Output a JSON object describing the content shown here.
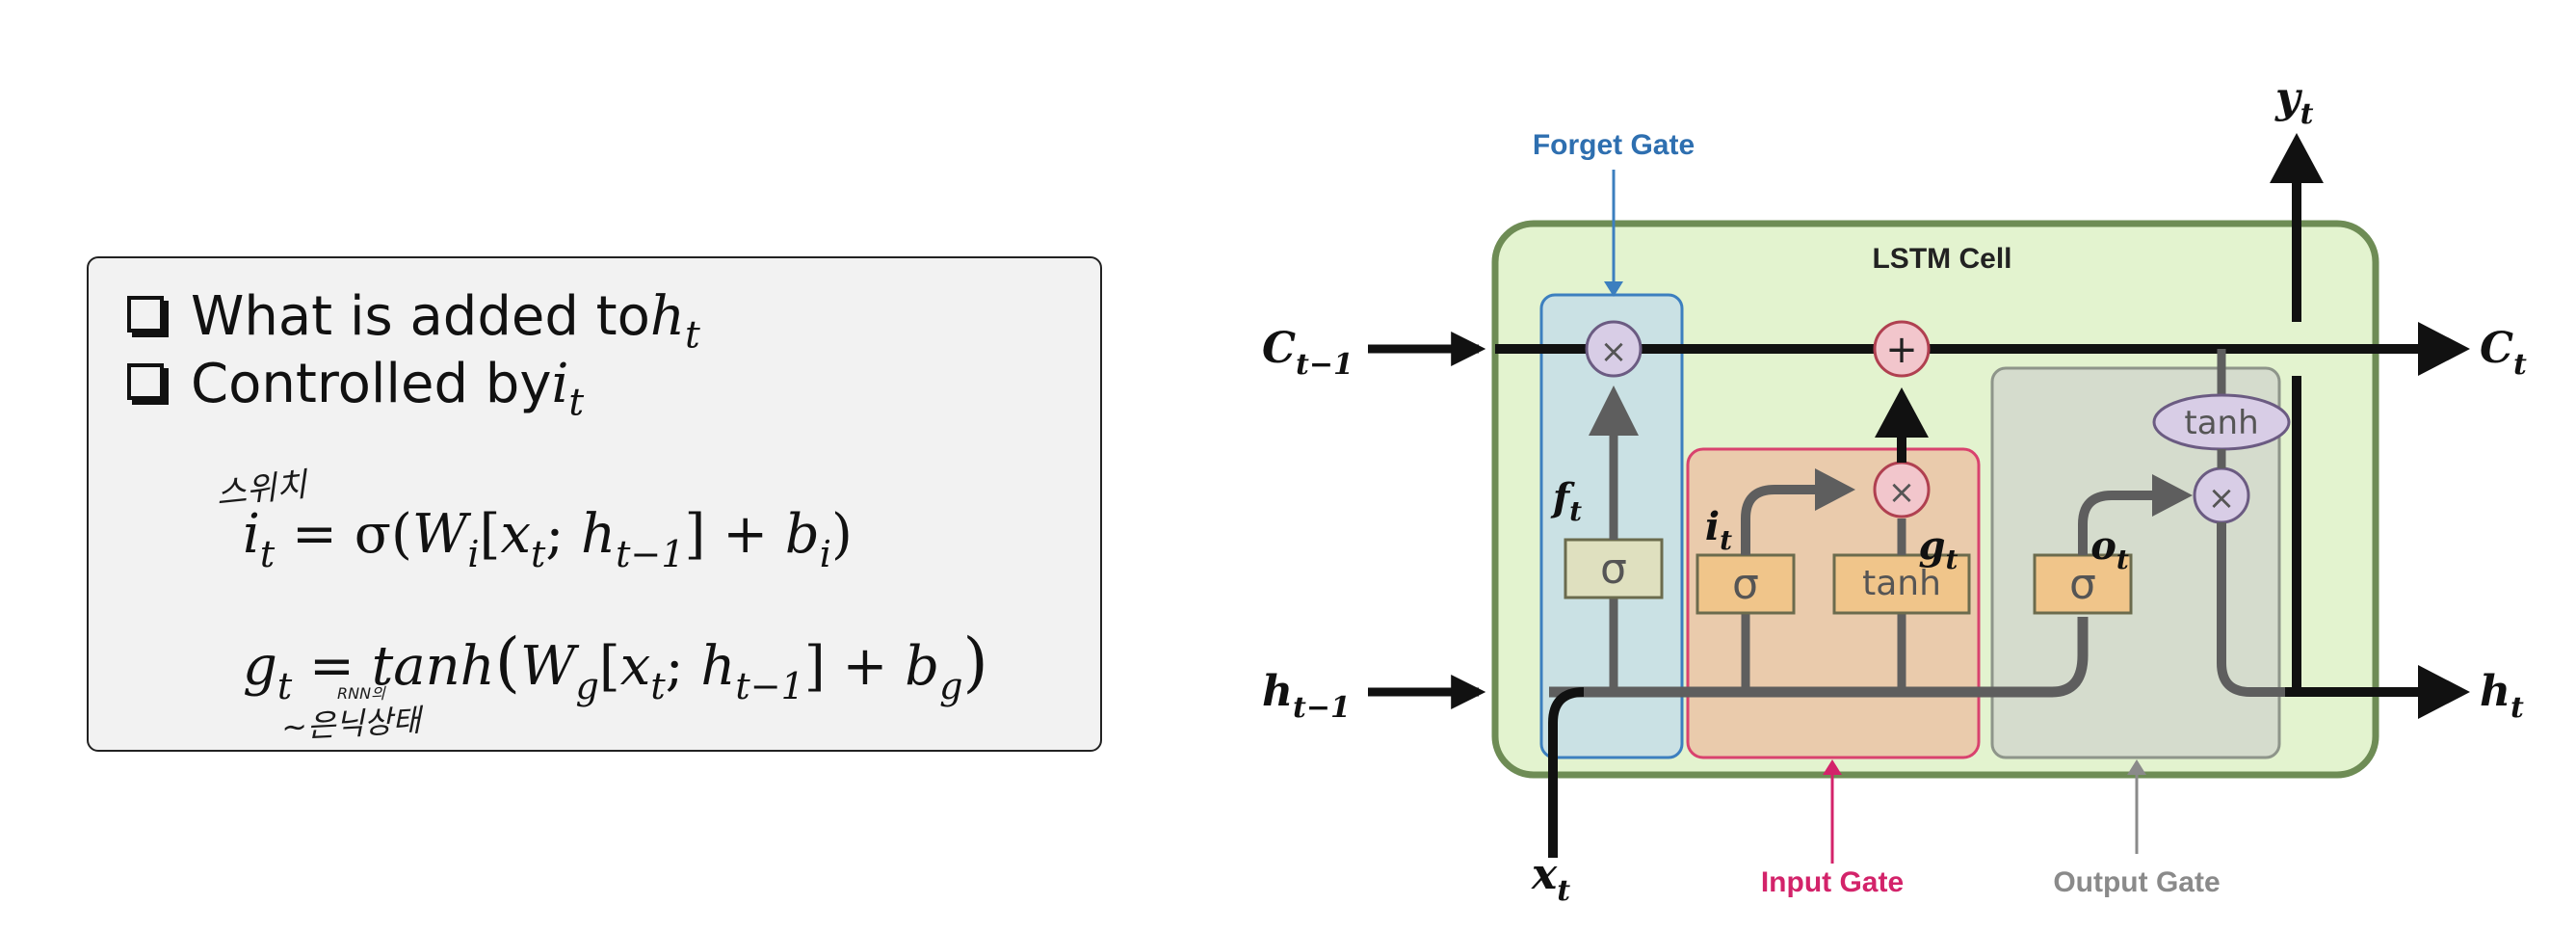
{
  "left_panel": {
    "bullet1_text": "What is added to ",
    "bullet1_var": "h",
    "bullet1_sub": "t",
    "bullet2_text": "Controlled by ",
    "bullet2_var": "i",
    "bullet2_sub": "t",
    "eq1": {
      "lhs": "i",
      "lhs_sub": "t",
      "eq": " = σ(",
      "W": "W",
      "W_sub": "i",
      "bracket_open": "[",
      "x": "x",
      "x_sub": "t",
      "sep": "; ",
      "h": "h",
      "h_sub": "t−1",
      "bracket_close": "] + ",
      "b": "b",
      "b_sub": "i",
      "close": ")"
    },
    "eq2": {
      "lhs": "g",
      "lhs_sub": "t",
      "eq": " = ",
      "func": "tanh",
      "paren_open": "(",
      "W": "W",
      "W_sub": "g",
      "bracket_open": "[",
      "x": "x",
      "x_sub": "t",
      "sep": "; ",
      "h": "h",
      "h_sub": "t−1",
      "bracket_close": "] + ",
      "b": "b",
      "b_sub": "g",
      "paren_close": ")"
    },
    "handwriting": {
      "note_switch": "스위치",
      "note_rnn_small": "RNN의",
      "note_hidden": "~은닉상태"
    }
  },
  "diagram": {
    "cell_label": "LSTM Cell",
    "forget_gate_label": "Forget Gate",
    "input_gate_label": "Input Gate",
    "output_gate_label": "Output Gate",
    "c_prev": "C",
    "c_prev_sub": "t−1",
    "c_next": "C",
    "c_next_sub": "t",
    "h_prev": "h",
    "h_prev_sub": "t−1",
    "h_next": "h",
    "h_next_sub": "t",
    "x_in": "x",
    "x_in_sub": "t",
    "y_out": "y",
    "y_out_sub": "t",
    "f_label": "f",
    "f_sub": "t",
    "i_label": "i",
    "i_sub": "t",
    "g_label": "g",
    "g_sub": "t",
    "o_label": "o",
    "o_sub": "t",
    "sigma": "σ",
    "tanh": "tanh",
    "mult": "×",
    "plus": "+",
    "colors": {
      "cell_fill": "#e3f3cf",
      "cell_stroke": "#6e8c55",
      "forget_fill": "#c6dde8",
      "forget_stroke": "#3c7fbf",
      "forget_text": "#2e6fb0",
      "input_fill": "#eac7a7",
      "input_stroke": "#d9426e",
      "input_text": "#d3236a",
      "output_fill": "#d3d9cc",
      "output_stroke": "#8e958a",
      "output_text": "#8a8a8a"
    }
  }
}
